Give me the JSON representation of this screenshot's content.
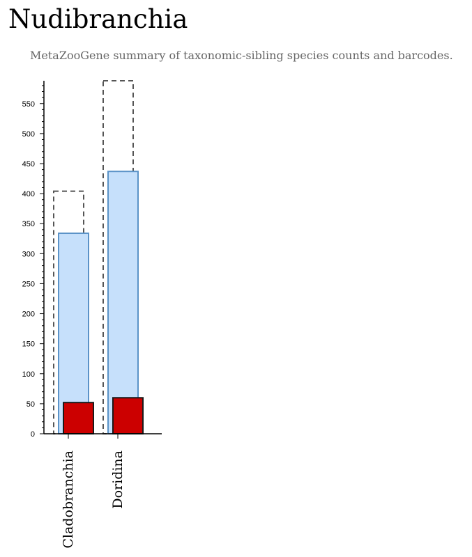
{
  "header": {
    "title": "Nudibranchia",
    "subtitle": "MetaZooGene summary of taxonomic-sibling species counts and barcodes."
  },
  "colors": {
    "subtitle": "#666666",
    "outline_dash": "#555555",
    "species_fill": "#c6e0fb",
    "species_stroke": "#5b93c8",
    "barcodes_fill": "#cc0000",
    "barcodes_stroke": "#1a1a1a",
    "axis": "#000000"
  },
  "chart_data": {
    "type": "bar",
    "categories": [
      "Cladobranchia",
      "Doridina"
    ],
    "series": [
      {
        "values": [
          404,
          588
        ],
        "style": "dashed-outline"
      },
      {
        "values": [
          334,
          437
        ],
        "style": "light-blue"
      },
      {
        "values": [
          52,
          60
        ],
        "style": "red"
      }
    ],
    "ylim": [
      0,
      588
    ],
    "yticks": [
      0,
      50,
      100,
      150,
      200,
      250,
      300,
      350,
      400,
      450,
      500,
      550
    ],
    "grid": false
  }
}
